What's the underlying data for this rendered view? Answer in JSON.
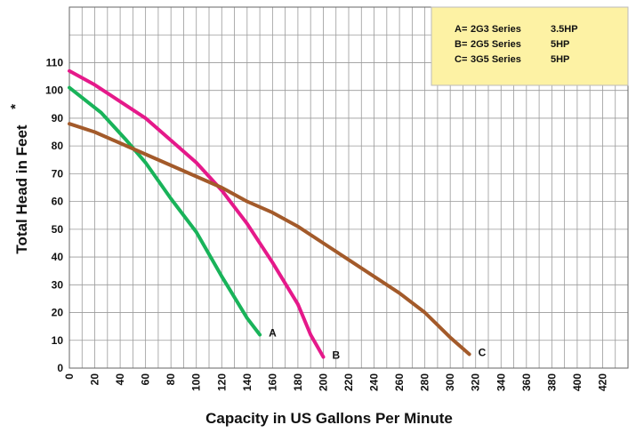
{
  "chart_data": {
    "type": "line",
    "xlabel": "Capacity in US Gallons Per Minute",
    "ylabel": "Total Head in Feet",
    "ylabel_marker": "*",
    "xlim": [
      0,
      440
    ],
    "ylim": [
      0,
      130
    ],
    "x_ticks": [
      0,
      20,
      40,
      60,
      80,
      100,
      120,
      140,
      160,
      180,
      200,
      220,
      240,
      260,
      280,
      300,
      320,
      340,
      360,
      380,
      400,
      420
    ],
    "y_ticks": [
      0,
      10,
      20,
      30,
      40,
      50,
      60,
      70,
      80,
      90,
      100,
      110
    ],
    "grid": true,
    "legend_position": "top-right",
    "legend": [
      {
        "letter": "A=",
        "series": "2G3 Series",
        "power": "3.5HP"
      },
      {
        "letter": "B=",
        "series": "2G5 Series",
        "power": "5HP"
      },
      {
        "letter": "C=",
        "series": "3G5 Series",
        "power": "5HP"
      }
    ],
    "series": [
      {
        "name": "A",
        "color": "#19b35a",
        "points": [
          [
            0,
            101
          ],
          [
            25,
            92
          ],
          [
            45,
            82
          ],
          [
            60,
            74
          ],
          [
            80,
            61
          ],
          [
            100,
            49
          ],
          [
            120,
            33
          ],
          [
            140,
            18
          ],
          [
            150,
            12
          ]
        ]
      },
      {
        "name": "B",
        "color": "#e5198a",
        "points": [
          [
            0,
            107
          ],
          [
            20,
            102
          ],
          [
            40,
            96
          ],
          [
            60,
            90
          ],
          [
            80,
            82
          ],
          [
            100,
            74
          ],
          [
            120,
            64
          ],
          [
            140,
            52
          ],
          [
            160,
            38
          ],
          [
            180,
            23
          ],
          [
            190,
            12
          ],
          [
            200,
            4
          ]
        ]
      },
      {
        "name": "C",
        "color": "#a35a2a",
        "points": [
          [
            0,
            88
          ],
          [
            20,
            85
          ],
          [
            40,
            81
          ],
          [
            60,
            77
          ],
          [
            80,
            73
          ],
          [
            100,
            69
          ],
          [
            120,
            65
          ],
          [
            140,
            60
          ],
          [
            160,
            56
          ],
          [
            180,
            51
          ],
          [
            200,
            45
          ],
          [
            220,
            39
          ],
          [
            240,
            33
          ],
          [
            260,
            27
          ],
          [
            280,
            20
          ],
          [
            300,
            11
          ],
          [
            315,
            5
          ]
        ]
      }
    ]
  },
  "colors": {
    "legend_bg": "#fdf2a4",
    "grid": "#9a9a9a",
    "frame": "#666666"
  }
}
